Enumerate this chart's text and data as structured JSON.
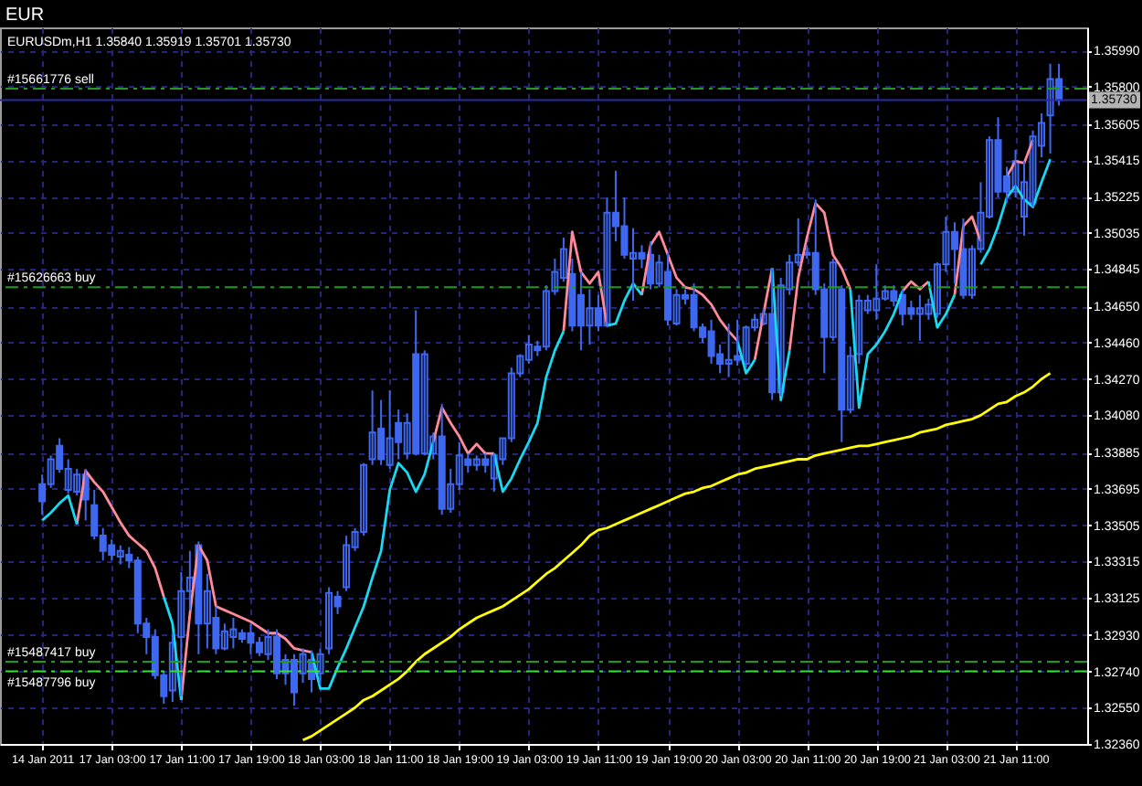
{
  "chart_data": {
    "type": "candlestick",
    "title": "EUR",
    "subtitle": "EURUSDm,H1 1.35840 1.35919 1.35701 1.35730",
    "categories": [
      "14 Jan 2011",
      null,
      null,
      null,
      null,
      null,
      null,
      null,
      "17 Jan 03:00",
      null,
      null,
      null,
      null,
      null,
      null,
      null,
      "17 Jan 11:00",
      null,
      null,
      null,
      null,
      null,
      null,
      null,
      "17 Jan 19:00",
      null,
      null,
      null,
      null,
      null,
      null,
      null,
      "18 Jan 03:00",
      null,
      null,
      null,
      null,
      null,
      null,
      null,
      "18 Jan 11:00",
      null,
      null,
      null,
      null,
      null,
      null,
      null,
      "18 Jan 19:00",
      null,
      null,
      null,
      null,
      null,
      null,
      null,
      "19 Jan 03:00",
      null,
      null,
      null,
      null,
      null,
      null,
      null,
      "19 Jan 11:00",
      null,
      null,
      null,
      null,
      null,
      null,
      null,
      "19 Jan 19:00",
      null,
      null,
      null,
      null,
      null,
      null,
      null,
      "20 Jan 03:00",
      null,
      null,
      null,
      null,
      null,
      null,
      null,
      "20 Jan 11:00",
      null,
      null,
      null,
      null,
      null,
      null,
      null,
      "20 Jan 19:00",
      null,
      null,
      null,
      null,
      null,
      null,
      null,
      "21 Jan 03:00",
      null,
      null,
      null,
      null,
      null,
      null,
      null,
      "21 Jan 11:00",
      null,
      null,
      null,
      null,
      null
    ],
    "series": [
      {
        "color": "#3f68f0",
        "ohlc": [
          [
            1.3372,
            1.3377,
            1.3356,
            1.3363
          ],
          [
            1.3372,
            1.3387,
            1.337,
            1.3385
          ],
          [
            1.3392,
            1.3396,
            1.3378,
            1.338
          ],
          [
            1.3369,
            1.3385,
            1.3367,
            1.338
          ],
          [
            1.3368,
            1.338,
            1.3366,
            1.3377
          ],
          [
            1.3377,
            1.338,
            1.3353,
            1.3364
          ],
          [
            1.3361,
            1.3369,
            1.3343,
            1.3345
          ],
          [
            1.3345,
            1.3349,
            1.3332,
            1.3337
          ],
          [
            1.334,
            1.3343,
            1.3332,
            1.3335
          ],
          [
            1.3334,
            1.334,
            1.333,
            1.3337
          ],
          [
            1.3335,
            1.3339,
            1.3328,
            1.3332
          ],
          [
            1.3332,
            1.3334,
            1.3294,
            1.3299
          ],
          [
            1.3299,
            1.3302,
            1.3283,
            1.3292
          ],
          [
            1.3292,
            1.3296,
            1.327,
            1.3272
          ],
          [
            1.3272,
            1.3274,
            1.3257,
            1.3261
          ],
          [
            1.3264,
            1.3294,
            1.3258,
            1.3289
          ],
          [
            1.3292,
            1.3326,
            1.3261,
            1.3316
          ],
          [
            1.3316,
            1.3337,
            1.3306,
            1.3323
          ],
          [
            1.334,
            1.3342,
            1.3283,
            1.3299
          ],
          [
            1.3299,
            1.3325,
            1.3286,
            1.3316
          ],
          [
            1.3302,
            1.3308,
            1.3283,
            1.3286
          ],
          [
            1.3286,
            1.3299,
            1.3285,
            1.3295
          ],
          [
            1.3292,
            1.3302,
            1.3286,
            1.3296
          ],
          [
            1.3294,
            1.3296,
            1.3289,
            1.3291
          ],
          [
            1.3294,
            1.3299,
            1.3283,
            1.3289
          ],
          [
            1.3289,
            1.3292,
            1.3282,
            1.3284
          ],
          [
            1.3283,
            1.3296,
            1.328,
            1.3292
          ],
          [
            1.3292,
            1.3296,
            1.327,
            1.3273
          ],
          [
            1.328,
            1.3283,
            1.3267,
            1.3273
          ],
          [
            1.328,
            1.3283,
            1.3256,
            1.3263
          ],
          [
            1.3273,
            1.3286,
            1.3268,
            1.3283
          ],
          [
            1.328,
            1.3285,
            1.3263,
            1.327
          ],
          [
            1.3273,
            1.3286,
            1.3267,
            1.3283
          ],
          [
            1.3286,
            1.3318,
            1.3283,
            1.3315
          ],
          [
            1.3313,
            1.3316,
            1.3304,
            1.3308
          ],
          [
            1.3318,
            1.3345,
            1.3316,
            1.334
          ],
          [
            1.3339,
            1.3349,
            1.3337,
            1.3347
          ],
          [
            1.3347,
            1.3383,
            1.3345,
            1.3382
          ],
          [
            1.3385,
            1.3421,
            1.3382,
            1.3399
          ],
          [
            1.3401,
            1.3416,
            1.3382,
            1.3385
          ],
          [
            1.3382,
            1.3421,
            1.338,
            1.3396
          ],
          [
            1.3404,
            1.3411,
            1.3385,
            1.3394
          ],
          [
            1.3388,
            1.3409,
            1.3385,
            1.3404
          ],
          [
            1.344,
            1.3463,
            1.3387,
            1.3388
          ],
          [
            1.3388,
            1.3442,
            1.3387,
            1.344
          ],
          [
            1.3388,
            1.3399,
            1.3385,
            1.3397
          ],
          [
            1.3397,
            1.3414,
            1.3356,
            1.3359
          ],
          [
            1.3359,
            1.338,
            1.3357,
            1.3372
          ],
          [
            1.3372,
            1.3394,
            1.3369,
            1.3387
          ],
          [
            1.3385,
            1.3388,
            1.3378,
            1.3382
          ],
          [
            1.3382,
            1.3387,
            1.3379,
            1.3385
          ],
          [
            1.3385,
            1.3388,
            1.3378,
            1.3382
          ],
          [
            1.3375,
            1.3388,
            1.3368,
            1.3387
          ],
          [
            1.3385,
            1.3396,
            1.3382,
            1.3396
          ],
          [
            1.3396,
            1.3433,
            1.3394,
            1.343
          ],
          [
            1.343,
            1.344,
            1.3428,
            1.3439
          ],
          [
            1.3437,
            1.345,
            1.3435,
            1.3445
          ],
          [
            1.3444,
            1.3447,
            1.3439,
            1.3442
          ],
          [
            1.3444,
            1.3476,
            1.3442,
            1.3473
          ],
          [
            1.3473,
            1.349,
            1.3471,
            1.3483
          ],
          [
            1.348,
            1.3501,
            1.3478,
            1.3495
          ],
          [
            1.3482,
            1.349,
            1.3452,
            1.3455
          ],
          [
            1.3471,
            1.3483,
            1.3442,
            1.3455
          ],
          [
            1.3455,
            1.3474,
            1.3445,
            1.3464
          ],
          [
            1.3464,
            1.3471,
            1.3452,
            1.3455
          ],
          [
            1.3455,
            1.3522,
            1.3454,
            1.3514
          ],
          [
            1.3514,
            1.3536,
            1.3499,
            1.3507
          ],
          [
            1.3507,
            1.3522,
            1.349,
            1.3492
          ],
          [
            1.349,
            1.3506,
            1.3468,
            1.3493
          ],
          [
            1.3493,
            1.3497,
            1.3485,
            1.349
          ],
          [
            1.3492,
            1.3499,
            1.3474,
            1.3477
          ],
          [
            1.3477,
            1.3492,
            1.3475,
            1.3488
          ],
          [
            1.3483,
            1.3493,
            1.3455,
            1.3458
          ],
          [
            1.3456,
            1.3474,
            1.3455,
            1.3471
          ],
          [
            1.3471,
            1.3474,
            1.3466,
            1.3469
          ],
          [
            1.3471,
            1.3477,
            1.3452,
            1.3454
          ],
          [
            1.3454,
            1.3456,
            1.3446,
            1.3449
          ],
          [
            1.3452,
            1.3458,
            1.3435,
            1.3439
          ],
          [
            1.344,
            1.3445,
            1.343,
            1.3435
          ],
          [
            1.3435,
            1.3456,
            1.3428,
            1.3437
          ],
          [
            1.3439,
            1.3458,
            1.3434,
            1.3437
          ],
          [
            1.3435,
            1.3455,
            1.3433,
            1.3454
          ],
          [
            1.3454,
            1.3461,
            1.3452,
            1.3458
          ],
          [
            1.3456,
            1.3464,
            1.3455,
            1.3461
          ],
          [
            1.3461,
            1.3485,
            1.3416,
            1.342
          ],
          [
            1.342,
            1.348,
            1.3418,
            1.3476
          ],
          [
            1.3474,
            1.3492,
            1.3471,
            1.3488
          ],
          [
            1.3488,
            1.3511,
            1.3486,
            1.3492
          ],
          [
            1.3493,
            1.3497,
            1.349,
            1.3492
          ],
          [
            1.3493,
            1.3521,
            1.3471,
            1.3474
          ],
          [
            1.3474,
            1.3477,
            1.343,
            1.3449
          ],
          [
            1.3449,
            1.349,
            1.3447,
            1.3488
          ],
          [
            1.3474,
            1.3476,
            1.3394,
            1.3411
          ],
          [
            1.3411,
            1.3444,
            1.3409,
            1.3439
          ],
          [
            1.344,
            1.3471,
            1.3435,
            1.3468
          ],
          [
            1.3463,
            1.3471,
            1.3461,
            1.3468
          ],
          [
            1.3463,
            1.3487,
            1.3458,
            1.3469
          ],
          [
            1.3469,
            1.3476,
            1.3468,
            1.3473
          ],
          [
            1.3473,
            1.3476,
            1.3465,
            1.3468
          ],
          [
            1.3471,
            1.3474,
            1.3455,
            1.3461
          ],
          [
            1.3464,
            1.3468,
            1.3458,
            1.3461
          ],
          [
            1.3461,
            1.3471,
            1.3447,
            1.3464
          ],
          [
            1.3461,
            1.3469,
            1.3458,
            1.3466
          ],
          [
            1.3461,
            1.3488,
            1.3459,
            1.3487
          ],
          [
            1.3487,
            1.3512,
            1.3483,
            1.3504
          ],
          [
            1.3504,
            1.3509,
            1.3477,
            1.3495
          ],
          [
            1.3495,
            1.3511,
            1.3469,
            1.3471
          ],
          [
            1.3471,
            1.3497,
            1.3469,
            1.3495
          ],
          [
            1.3495,
            1.353,
            1.3493,
            1.3514
          ],
          [
            1.3512,
            1.3554,
            1.3511,
            1.3552
          ],
          [
            1.3552,
            1.3564,
            1.3522,
            1.3525
          ],
          [
            1.3533,
            1.3538,
            1.3519,
            1.3525
          ],
          [
            1.3525,
            1.3547,
            1.3522,
            1.3541
          ],
          [
            1.3512,
            1.3541,
            1.3502,
            1.353
          ],
          [
            1.3519,
            1.3557,
            1.3517,
            1.3554
          ],
          [
            1.3549,
            1.3566,
            1.3543,
            1.3561
          ],
          [
            1.3565,
            1.3592,
            1.3545,
            1.3584
          ],
          [
            1.3584,
            1.35919,
            1.35701,
            1.3573
          ]
        ]
      },
      {
        "type": "line",
        "color": "#ff8a9a",
        "values": [
          null,
          null,
          null,
          null,
          1.3351,
          1.3379,
          1.3373,
          1.3368,
          1.336,
          1.3352,
          1.3345,
          1.3341,
          1.3337,
          1.3328,
          1.3313,
          null,
          1.3259,
          1.3304,
          1.334,
          1.3332,
          1.3308,
          1.3306,
          1.3304,
          1.3302,
          1.33,
          1.3297,
          1.3294,
          1.3294,
          1.3291,
          1.3286,
          1.3285,
          1.3284,
          null,
          null,
          null,
          null,
          null,
          null,
          null,
          null,
          null,
          null,
          null,
          null,
          null,
          1.3394,
          1.3412,
          1.3404,
          1.3397,
          1.3388,
          1.3393,
          1.3388,
          1.3388,
          null,
          null,
          null,
          null,
          null,
          null,
          null,
          1.3452,
          1.3504,
          1.3483,
          1.3477,
          1.3483,
          1.3455,
          null,
          null,
          null,
          1.3471,
          1.3497,
          1.3504,
          1.3492,
          1.348,
          1.3475,
          1.3474,
          1.3471,
          1.3466,
          1.3458,
          1.3452,
          1.3447,
          null,
          1.3437,
          1.3461,
          1.3485,
          null,
          1.3442,
          1.348,
          1.3501,
          1.3519,
          1.3514,
          1.3492,
          1.3485,
          1.3474,
          null,
          null,
          null,
          null,
          null,
          1.3473,
          1.3478,
          1.3474,
          1.3478,
          null,
          null,
          1.3471,
          1.3507,
          1.3512,
          1.3499,
          null,
          null,
          1.3533,
          1.3541,
          1.354,
          1.3552,
          null,
          null,
          null
        ]
      },
      {
        "type": "line",
        "color": "#19d8f2",
        "values": [
          1.3353,
          1.3357,
          1.3362,
          1.3366,
          1.3351,
          null,
          null,
          null,
          null,
          null,
          null,
          null,
          null,
          null,
          1.3313,
          1.3299,
          1.3259,
          null,
          null,
          null,
          null,
          null,
          null,
          null,
          null,
          null,
          null,
          null,
          null,
          null,
          null,
          1.3284,
          1.3265,
          1.3265,
          1.3276,
          1.3286,
          1.3297,
          1.3308,
          1.3323,
          1.3337,
          1.3369,
          1.3383,
          1.3378,
          1.3368,
          1.3377,
          1.3394,
          null,
          null,
          null,
          null,
          null,
          null,
          1.3388,
          1.3368,
          1.3375,
          1.3385,
          1.3394,
          1.3404,
          1.3428,
          1.3442,
          1.3452,
          null,
          null,
          null,
          null,
          1.3455,
          1.3456,
          1.3468,
          1.3477,
          1.3471,
          null,
          null,
          null,
          null,
          null,
          null,
          null,
          null,
          null,
          null,
          1.3447,
          1.343,
          1.3437,
          null,
          1.3485,
          1.3416,
          1.3442,
          null,
          null,
          null,
          null,
          null,
          null,
          1.3474,
          1.3412,
          1.344,
          1.3445,
          1.3452,
          1.3461,
          1.3473,
          null,
          null,
          1.3478,
          1.3454,
          1.3461,
          1.3471,
          null,
          null,
          1.3487,
          1.3495,
          1.3507,
          1.3522,
          1.3528,
          1.3521,
          1.3517,
          1.353,
          1.3542,
          null
        ]
      },
      {
        "type": "line",
        "color": "#ffff00",
        "values": [
          null,
          null,
          null,
          null,
          null,
          null,
          null,
          null,
          null,
          null,
          null,
          null,
          null,
          null,
          null,
          null,
          null,
          null,
          null,
          null,
          null,
          null,
          null,
          null,
          null,
          null,
          null,
          null,
          null,
          null,
          1.3238,
          1.324,
          1.3243,
          1.3246,
          1.3249,
          1.3252,
          1.3255,
          1.3259,
          1.3261,
          1.3264,
          1.3267,
          1.327,
          1.3274,
          1.3279,
          1.3283,
          1.3286,
          1.3289,
          1.3292,
          1.3296,
          1.3299,
          1.3302,
          1.3304,
          1.3306,
          1.3308,
          1.3311,
          1.3314,
          1.3317,
          1.3321,
          1.3325,
          1.3328,
          1.3332,
          1.3336,
          1.334,
          1.3345,
          1.3348,
          1.3349,
          1.3351,
          1.3353,
          1.3355,
          1.3357,
          1.3359,
          1.3361,
          1.3363,
          1.3365,
          1.3367,
          1.3368,
          1.337,
          1.3371,
          1.3373,
          1.3375,
          1.3377,
          1.3378,
          1.338,
          1.3381,
          1.3382,
          1.3383,
          1.3384,
          1.3385,
          1.3385,
          1.3387,
          1.3388,
          1.3389,
          1.339,
          1.3391,
          1.3392,
          1.3392,
          1.3393,
          1.3394,
          1.3395,
          1.3396,
          1.3397,
          1.3399,
          1.34,
          1.3401,
          1.3403,
          1.3404,
          1.3405,
          1.3406,
          1.3408,
          1.3411,
          1.3414,
          1.3415,
          1.3418,
          1.342,
          1.3423,
          1.3427,
          1.343,
          null
        ]
      }
    ],
    "ylim": [
      1.3236,
      1.3611
    ],
    "yticks": [
      {
        "value": 1.3236,
        "label": "1.32360"
      },
      {
        "value": 1.3255,
        "label": "1.32550"
      },
      {
        "value": 1.3274,
        "label": "1.32740"
      },
      {
        "value": 1.3293,
        "label": "1.32930"
      },
      1.33125,
      1.33315,
      1.33505,
      1.33695,
      1.33885,
      {
        "value": 1.3408,
        "label": "1.34080"
      },
      {
        "value": 1.3427,
        "label": "1.34270"
      },
      {
        "value": 1.3446,
        "label": "1.34460"
      },
      {
        "value": 1.3465,
        "label": "1.34650"
      },
      1.34845,
      1.35035,
      1.35225,
      1.35415,
      1.35605,
      {
        "value": 1.358,
        "label": "1.35800"
      },
      {
        "value": 1.3599,
        "label": "1.35990"
      }
    ],
    "grid": true,
    "ref_lines": [
      {
        "axis": "y",
        "value": 1.3579,
        "label": "#15661776 sell",
        "color": "#1e9a1e",
        "line_style": "dashed"
      },
      {
        "axis": "y",
        "value": 1.3475,
        "label": "#15626663 buy",
        "color": "#1e9a1e",
        "line_style": "dashed"
      },
      {
        "axis": "y",
        "value": 1.3279,
        "label": "#15487417 buy",
        "color": "#1e9a1e",
        "line_style": "dashed"
      },
      {
        "axis": "y",
        "value": 1.3274,
        "label": "#15487796 buy",
        "color": "#33e033",
        "line_style": "dashed"
      },
      {
        "axis": "y",
        "value": 1.3573,
        "label": "1.35730",
        "color": "#2a2aa8",
        "line_style": "solid"
      }
    ]
  }
}
